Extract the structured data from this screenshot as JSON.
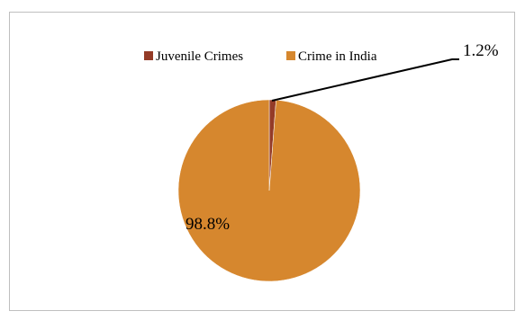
{
  "chart_data": {
    "type": "pie",
    "title": "",
    "legend_position": "top",
    "slices": [
      {
        "label": "Juvenile Crimes",
        "value": 1.2,
        "display": "1.2%",
        "color": "#943b27"
      },
      {
        "label": "Crime in India",
        "value": 98.8,
        "display": "98.8%",
        "color": "#d6872e"
      }
    ]
  }
}
